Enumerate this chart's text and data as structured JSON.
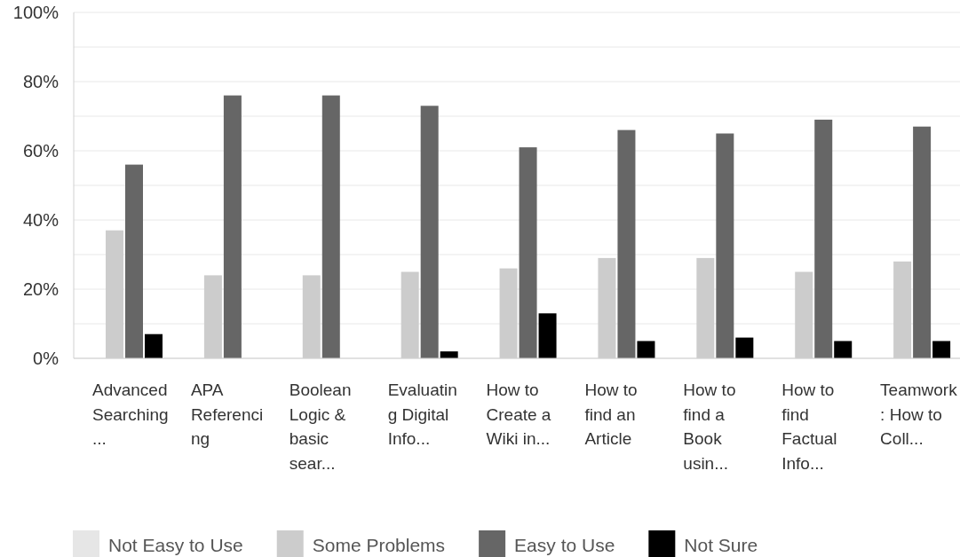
{
  "chart_data": {
    "type": "bar",
    "categories": [
      "Advanced Searching...",
      "APA Referencing",
      "Boolean Logic & basic sear...",
      "Evaluating Digital Info...",
      "How to Create a Wiki in...",
      "How to find an Article",
      "How to find a Book usin...",
      "How to find Factual Info...",
      "Teamwork: How to Coll..."
    ],
    "series": [
      {
        "name": "Not Easy to Use",
        "color": "#e6e6e6",
        "values": [
          0,
          0,
          0,
          0,
          0,
          0,
          0,
          0,
          0
        ]
      },
      {
        "name": "Some Problems",
        "color": "#cccccc",
        "values": [
          37,
          24,
          24,
          25,
          26,
          29,
          29,
          25,
          28
        ]
      },
      {
        "name": "Easy to Use",
        "color": "#666666",
        "values": [
          56,
          76,
          76,
          73,
          61,
          66,
          65,
          69,
          67
        ]
      },
      {
        "name": "Not Sure",
        "color": "#000000",
        "values": [
          7,
          0,
          0,
          2,
          13,
          5,
          6,
          5,
          5
        ]
      }
    ],
    "ylim": [
      0,
      100
    ],
    "yticks": [
      {
        "value": 0,
        "label": "0%"
      },
      {
        "value": 10,
        "label": null
      },
      {
        "value": 20,
        "label": "20%"
      },
      {
        "value": 30,
        "label": null
      },
      {
        "value": 40,
        "label": "40%"
      },
      {
        "value": 50,
        "label": null
      },
      {
        "value": 60,
        "label": "60%"
      },
      {
        "value": 70,
        "label": null
      },
      {
        "value": 80,
        "label": "80%"
      },
      {
        "value": 90,
        "label": null
      },
      {
        "value": 100,
        "label": "100%"
      }
    ],
    "grid": true,
    "legend": "bottom"
  }
}
